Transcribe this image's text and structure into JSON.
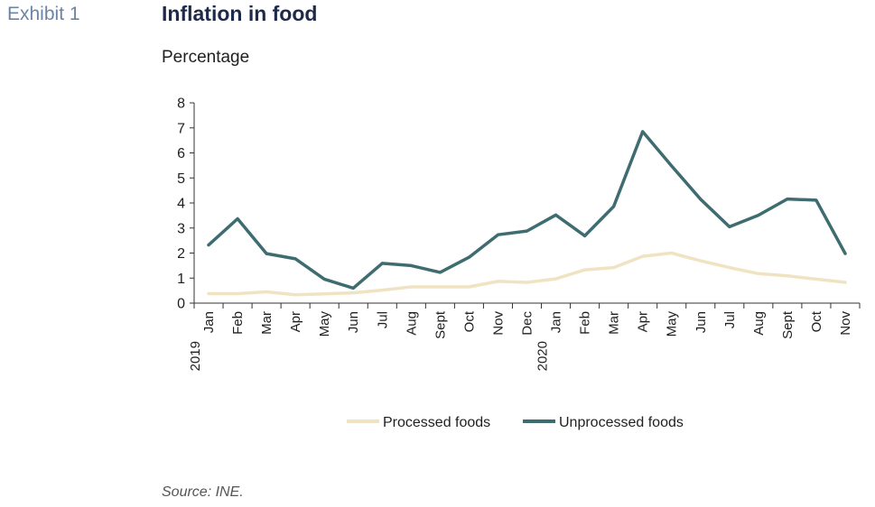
{
  "header": {
    "exhibit": "Exhibit 1",
    "title": "Inflation in food",
    "subtitle": "Percentage"
  },
  "footer": {
    "source": "Source: INE."
  },
  "chart_data": {
    "type": "line",
    "categories": [
      "Jan",
      "Feb",
      "Mar",
      "Apr",
      "May",
      "Jun",
      "Jul",
      "Aug",
      "Sept",
      "Oct",
      "Nov",
      "Dec",
      "Jan",
      "Feb",
      "Mar",
      "Apr",
      "May",
      "Jun",
      "Jul",
      "Aug",
      "Sept",
      "Oct",
      "Nov"
    ],
    "year_labels": [
      {
        "index": 0,
        "label": "2019"
      },
      {
        "index": 12,
        "label": "2020"
      }
    ],
    "ylim": [
      0,
      8
    ],
    "yticks": [
      0,
      1,
      2,
      3,
      4,
      5,
      6,
      7,
      8
    ],
    "grid": false,
    "legend_position": "bottom",
    "series": [
      {
        "name": "Processed foods",
        "color": "#efe3c2",
        "values": [
          0.38,
          0.38,
          0.45,
          0.33,
          0.37,
          0.41,
          0.52,
          0.65,
          0.65,
          0.65,
          0.87,
          0.83,
          0.97,
          1.33,
          1.42,
          1.87,
          2.0,
          1.69,
          1.42,
          1.18,
          1.09,
          0.96,
          0.83
        ]
      },
      {
        "name": "Unprocessed foods",
        "color": "#3e6c70",
        "values": [
          2.32,
          3.37,
          1.98,
          1.77,
          0.96,
          0.6,
          1.59,
          1.5,
          1.23,
          1.83,
          2.73,
          2.88,
          3.52,
          2.69,
          3.86,
          6.85,
          5.48,
          4.15,
          3.05,
          3.51,
          4.16,
          4.11,
          1.98
        ]
      }
    ]
  }
}
